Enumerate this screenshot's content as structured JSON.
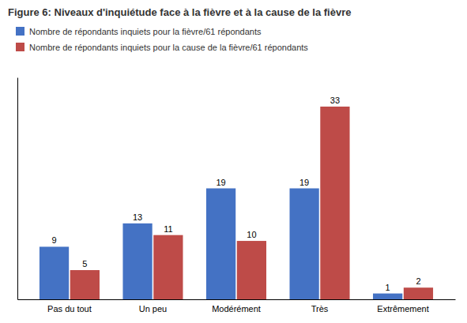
{
  "chart_data": {
    "type": "bar",
    "title": "Figure 6: Niveaux d'inquiétude face à la fièvre et à la cause de la fièvre",
    "categories": [
      "Pas du tout",
      "Un peu",
      "Modérément",
      "Très",
      "Extrêmement"
    ],
    "series": [
      {
        "name": "Nombre de répondants inquiets pour la fièvre/61 répondants",
        "color": "#4472C4",
        "values": [
          9,
          13,
          19,
          19,
          1
        ]
      },
      {
        "name": "Nombre de répondants inquiets pour la cause de la fièvre/61 répondants",
        "color": "#BE4B48",
        "values": [
          5,
          11,
          10,
          33,
          2
        ]
      }
    ],
    "ylim": [
      0,
      38
    ],
    "grid": false,
    "legend": "upper left",
    "data_labels": true,
    "tick_labels": "x"
  }
}
